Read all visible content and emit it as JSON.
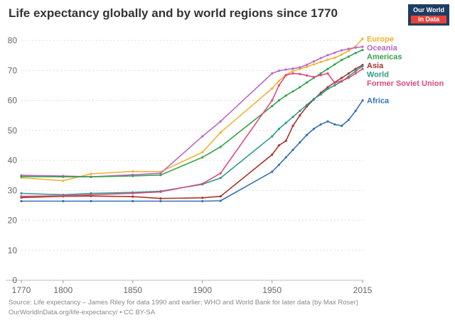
{
  "header": {
    "title": "Life expectancy globally and by world regions since 1770"
  },
  "logo": {
    "line1": "Our World",
    "line2": "in Data",
    "bg_color": "#1d3d63",
    "accent_color": "#e8433b"
  },
  "footer": {
    "line1": "Source: Life expectancy – James Riley for data 1990 and earlier; WHO and World Bank for later data (by Max Roser)",
    "line2": "OurWorldInData.org/life-expectancy/ • CC BY-SA"
  },
  "chart_data": {
    "type": "line",
    "title": "Life expectancy globally and by world regions since 1770",
    "xlabel": "",
    "ylabel": "",
    "xlim": [
      1770,
      2015
    ],
    "ylim": [
      0,
      80
    ],
    "xticks": [
      1770,
      1800,
      1850,
      1900,
      1950,
      2015
    ],
    "yticks": [
      0,
      10,
      20,
      30,
      40,
      50,
      60,
      70,
      80
    ],
    "grid": true,
    "legend_position": "right",
    "x": [
      1770,
      1800,
      1820,
      1850,
      1870,
      1900,
      1913,
      1950,
      1955,
      1960,
      1965,
      1970,
      1975,
      1980,
      1985,
      1990,
      1995,
      2000,
      2005,
      2010,
      2015
    ],
    "series": [
      {
        "name": "Europe",
        "color": "#f2b134",
        "values": [
          34.2,
          33.2,
          35.5,
          36.3,
          36.2,
          42.7,
          49.3,
          64.0,
          66.5,
          68.5,
          69.8,
          70.5,
          71.2,
          72.0,
          72.8,
          73.6,
          74.2,
          75.3,
          76.6,
          78.0,
          80.6
        ]
      },
      {
        "name": "Oceania",
        "color": "#bb66c9",
        "values": [
          35.0,
          34.8,
          34.5,
          35.2,
          35.7,
          48.0,
          53.0,
          69.0,
          69.9,
          70.3,
          70.6,
          71.0,
          71.9,
          73.0,
          74.1,
          75.1,
          75.9,
          76.7,
          77.2,
          77.6,
          77.9
        ]
      },
      {
        "name": "Americas",
        "color": "#36a14d",
        "values": [
          34.6,
          34.5,
          34.5,
          34.8,
          35.1,
          41.0,
          44.5,
          58.1,
          60.0,
          61.6,
          63.0,
          64.4,
          66.0,
          67.5,
          69.0,
          70.5,
          72.0,
          73.5,
          74.6,
          75.8,
          76.8
        ]
      },
      {
        "name": "Asia",
        "color": "#a8352c",
        "values": [
          27.6,
          28.0,
          28.1,
          27.9,
          27.3,
          27.5,
          28.0,
          41.9,
          45.0,
          46.5,
          51.5,
          55.0,
          58.0,
          60.3,
          62.5,
          64.4,
          66.0,
          67.5,
          69.0,
          70.5,
          71.8
        ]
      },
      {
        "name": "World",
        "color": "#2c9c8a",
        "values": [
          29.0,
          28.5,
          29.0,
          29.3,
          29.7,
          32.0,
          34.1,
          48.0,
          50.5,
          52.5,
          54.5,
          56.5,
          58.5,
          60.5,
          62.0,
          63.8,
          65.0,
          66.3,
          68.0,
          69.8,
          71.4
        ]
      },
      {
        "name": "Former Soviet Union",
        "color": "#e0497e",
        "values": [
          28.0,
          28.2,
          28.5,
          29.0,
          29.5,
          32.2,
          35.7,
          60.0,
          65.0,
          68.4,
          69.0,
          68.8,
          68.3,
          67.8,
          68.4,
          69.0,
          65.8,
          66.5,
          67.5,
          69.0,
          70.5
        ]
      },
      {
        "name": "Africa",
        "color": "#3672b4",
        "values": [
          26.4,
          26.4,
          26.4,
          26.4,
          26.4,
          26.4,
          26.5,
          36.2,
          38.5,
          41.0,
          43.5,
          46.0,
          48.5,
          50.5,
          52.0,
          53.0,
          52.0,
          51.5,
          53.5,
          56.5,
          60.0
        ]
      }
    ]
  }
}
